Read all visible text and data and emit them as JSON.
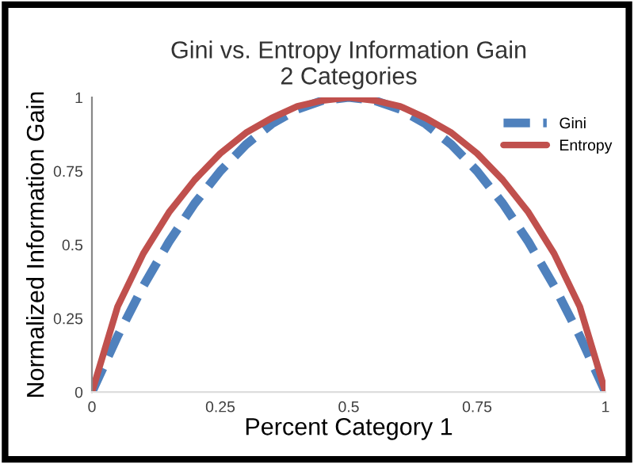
{
  "chart_data": {
    "type": "line",
    "title": "Gini vs. Entropy Information Gain\n2 Categories",
    "xlabel": "Percent Category 1",
    "ylabel": "Normalized Information Gain",
    "x": [
      0,
      0.05,
      0.1,
      0.15,
      0.2,
      0.25,
      0.3,
      0.35,
      0.4,
      0.45,
      0.5,
      0.55,
      0.6,
      0.65,
      0.7,
      0.75,
      0.8,
      0.85,
      0.9,
      0.95,
      1
    ],
    "series": [
      {
        "name": "Gini",
        "color": "#4f81bd",
        "line_style": "dashed",
        "values": [
          0,
          0.19,
          0.36,
          0.51,
          0.64,
          0.75,
          0.84,
          0.91,
          0.96,
          0.99,
          1,
          0.99,
          0.96,
          0.91,
          0.84,
          0.75,
          0.64,
          0.51,
          0.36,
          0.19,
          0
        ]
      },
      {
        "name": "Entropy",
        "color": "#c0504d",
        "line_style": "solid",
        "values": [
          0,
          0.29,
          0.47,
          0.61,
          0.72,
          0.81,
          0.88,
          0.93,
          0.97,
          0.99,
          1,
          0.99,
          0.97,
          0.93,
          0.88,
          0.81,
          0.72,
          0.61,
          0.47,
          0.29,
          0
        ]
      }
    ],
    "xlim": [
      0,
      1
    ],
    "ylim": [
      0,
      1
    ],
    "xticks": [
      0,
      0.25,
      0.5,
      0.75,
      1
    ],
    "yticks": [
      0,
      0.25,
      0.5,
      0.75,
      1
    ],
    "grid": false,
    "legend": "top right",
    "marker": "none"
  }
}
